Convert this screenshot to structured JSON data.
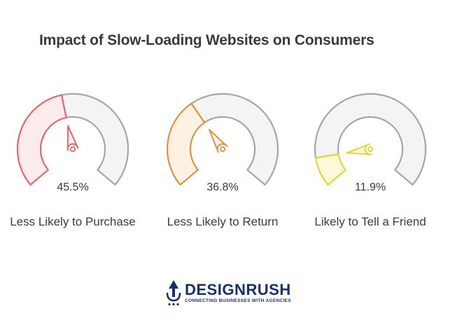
{
  "chart_data": {
    "type": "gauge",
    "title": "Impact of Slow-Loading Websites on Consumers",
    "gauges": [
      {
        "label": "Less Likely to Purchase",
        "value": 45.5,
        "value_label": "45.5%",
        "color": "#e0696c",
        "fill": "#fcebeb"
      },
      {
        "label": "Less Likely to Return",
        "value": 36.8,
        "value_label": "36.8%",
        "color": "#dd9345",
        "fill": "#fdf1e3"
      },
      {
        "label": "Likely to Tell a Friend",
        "value": 11.9,
        "value_label": "11.9%",
        "color": "#e2d63b",
        "fill": "#fbf9d8"
      }
    ],
    "range": [
      0,
      100
    ]
  },
  "logo": {
    "brand": "DESIGNRUSH",
    "tagline": "CONNECTING BUSINESSES WITH AGENCIES",
    "color": "#1a2f6e"
  }
}
